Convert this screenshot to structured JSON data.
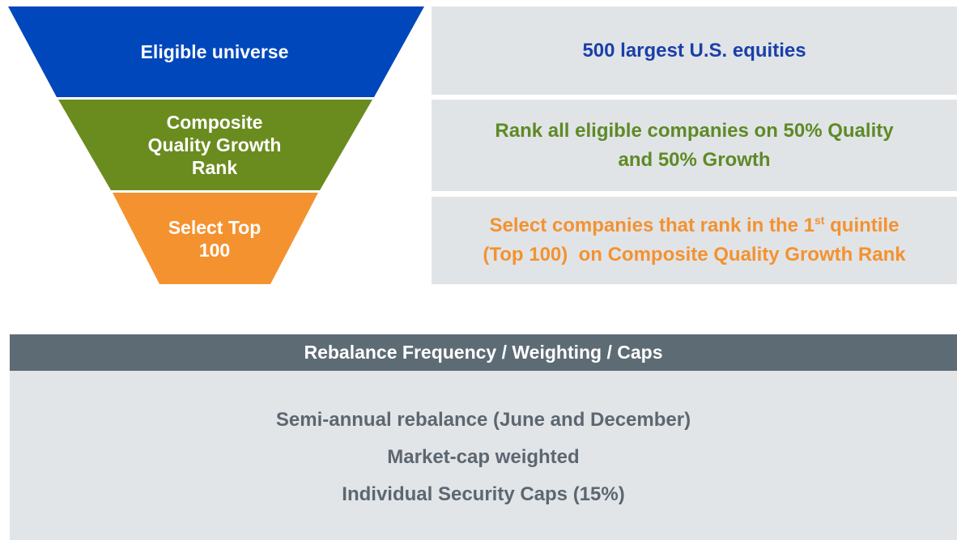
{
  "funnel": [
    {
      "label": [
        "Eligible universe"
      ],
      "description": {
        "lines": [
          [
            "500 largest U.S. equities"
          ]
        ]
      }
    },
    {
      "label": [
        "Composite",
        "Quality Growth",
        "Rank"
      ],
      "description": {
        "lines": [
          [
            "Rank all eligible companies on 50% Quality"
          ],
          [
            "and 50% Growth"
          ]
        ]
      }
    },
    {
      "label": [
        "Select Top",
        "100"
      ],
      "description": {
        "lines": [
          [
            "Select companies that rank in the 1",
            "st",
            " quintile"
          ],
          [
            "(Top 100)  on Composite Quality Growth Rank"
          ]
        ]
      }
    }
  ],
  "rules": {
    "title": "Rebalance Frequency / Weighting / Caps",
    "items": [
      "Semi-annual rebalance (June and December)",
      "Market-cap weighted",
      "Individual Security Caps (15%)"
    ]
  }
}
